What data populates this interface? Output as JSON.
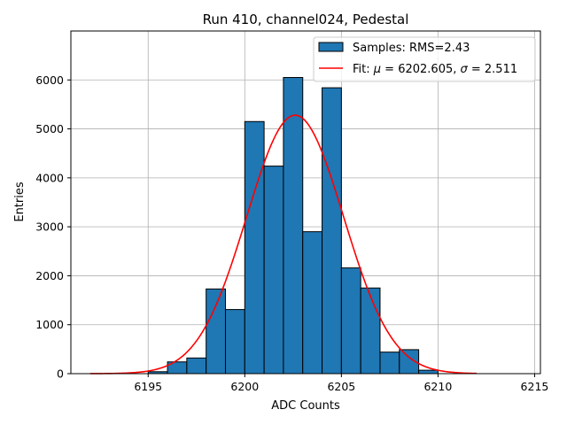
{
  "chart_data": {
    "type": "bar",
    "title": "Run 410, channel024, Pedestal",
    "xlabel": "ADC Counts",
    "ylabel": "Entries",
    "xlim": [
      6191,
      6215.3
    ],
    "ylim": [
      0,
      7000
    ],
    "xticks": [
      6195,
      6200,
      6205,
      6210,
      6215
    ],
    "yticks": [
      0,
      1000,
      2000,
      3000,
      4000,
      5000,
      6000
    ],
    "grid": true,
    "legend_position": "top-right",
    "colors": {
      "bars": "#1f77b4",
      "bar_edge": "#000000",
      "fit": "#ff0000",
      "grid": "#b0b0b0"
    },
    "histogram": {
      "name": "Samples: RMS=2.43",
      "bin_edges": [
        6195,
        6196,
        6197,
        6198,
        6199,
        6200,
        6201,
        6202,
        6203,
        6204,
        6205,
        6206,
        6207,
        6208,
        6209,
        6210
      ],
      "counts": [
        40,
        240,
        320,
        1730,
        1310,
        5150,
        4240,
        6050,
        2900,
        5840,
        2160,
        1750,
        440,
        490,
        70
      ]
    },
    "fit": {
      "name": "Fit: μ = 6202.605, σ = 2.511",
      "label_parts": [
        "Fit: ",
        "μ",
        " = 6202.605, ",
        "σ",
        " = 2.511"
      ],
      "mu": 6202.605,
      "sigma": 2.511,
      "amplitude": 5280,
      "x_range": [
        6192,
        6212
      ]
    }
  }
}
